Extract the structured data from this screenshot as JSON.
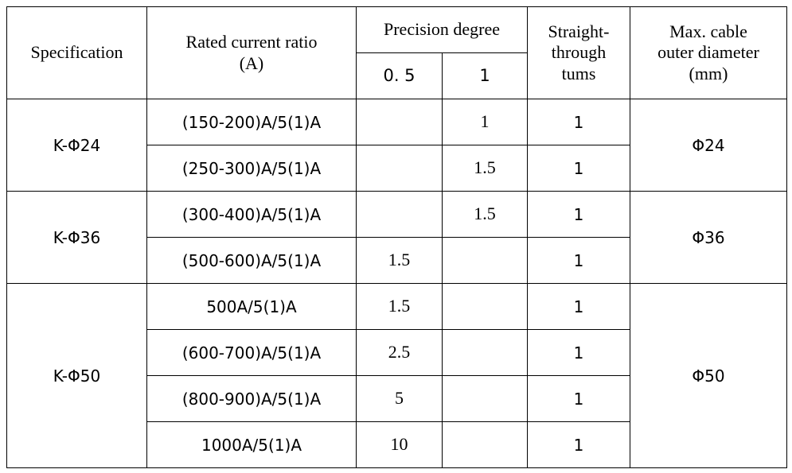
{
  "header": {
    "specification": "Specification",
    "rated_line1": "Rated current ratio",
    "rated_line2": "(A)",
    "precision": "Precision degree",
    "precision_05": "0. 5",
    "precision_1": "1",
    "turns_line1": "Straight-",
    "turns_line2": "through",
    "turns_line3": "tums",
    "diameter_line1": "Max. cable",
    "diameter_line2": "outer diameter",
    "diameter_line3": "(mm)"
  },
  "groups": [
    {
      "spec": "K-Φ24",
      "diameter": "Φ24",
      "rows": [
        {
          "ratio": "(150-200)A/5(1)A",
          "p05": "",
          "p1": "1",
          "turns": "1"
        },
        {
          "ratio": "(250-300)A/5(1)A",
          "p05": "",
          "p1": "1.5",
          "turns": "1"
        }
      ]
    },
    {
      "spec": "K-Φ36",
      "diameter": "Φ36",
      "rows": [
        {
          "ratio": "(300-400)A/5(1)A",
          "p05": "",
          "p1": "1.5",
          "turns": "1"
        },
        {
          "ratio": "(500-600)A/5(1)A",
          "p05": "1.5",
          "p1": "",
          "turns": "1"
        }
      ]
    },
    {
      "spec": "K-Φ50",
      "diameter": "Φ50",
      "rows": [
        {
          "ratio": "500A/5(1)A",
          "p05": "1.5",
          "p1": "",
          "turns": "1"
        },
        {
          "ratio": "(600-700)A/5(1)A",
          "p05": "2.5",
          "p1": "",
          "turns": "1"
        },
        {
          "ratio": "(800-900)A/5(1)A",
          "p05": "5",
          "p1": "",
          "turns": "1"
        },
        {
          "ratio": "1000A/5(1)A",
          "p05": "10",
          "p1": "",
          "turns": "1"
        }
      ]
    }
  ]
}
